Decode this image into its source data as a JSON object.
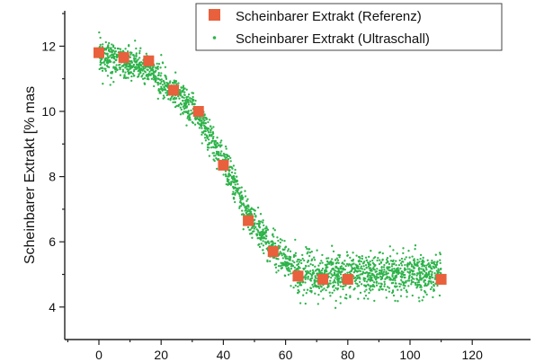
{
  "chart_data": {
    "type": "scatter",
    "title": "",
    "xlabel": "",
    "ylabel": "Scheinbarer Extrakt [% mas",
    "xlim": [
      -10,
      120
    ],
    "ylim": [
      3.5,
      13
    ],
    "x_ticks": [
      0,
      20,
      40,
      60,
      80,
      100,
      120
    ],
    "y_ticks": [
      4,
      6,
      8,
      10,
      12
    ],
    "grid": false,
    "legend_position": "top-right",
    "series": [
      {
        "name": "Scheinbarer Extrakt (Referenz)",
        "marker": "square",
        "color": "#E8603C",
        "x": [
          0,
          8,
          16,
          24,
          32,
          40,
          48,
          56,
          64,
          72,
          80,
          110
        ],
        "y": [
          11.8,
          11.65,
          11.55,
          10.65,
          10.0,
          8.35,
          6.65,
          5.7,
          4.95,
          4.85,
          4.85,
          4.85
        ]
      },
      {
        "name": "Scheinbarer Extrakt (Ultraschall)",
        "marker": "dot",
        "color": "#2DB34A",
        "x_range": [
          0,
          110
        ],
        "profile_x": [
          0,
          8,
          16,
          24,
          32,
          40,
          48,
          56,
          64,
          72,
          80,
          90,
          100,
          110
        ],
        "profile_y": [
          11.75,
          11.5,
          11.3,
          10.6,
          9.8,
          8.5,
          6.8,
          5.8,
          5.0,
          5.0,
          5.0,
          5.0,
          5.0,
          5.0
        ],
        "spread": 0.45,
        "point_count": 2400
      }
    ]
  }
}
